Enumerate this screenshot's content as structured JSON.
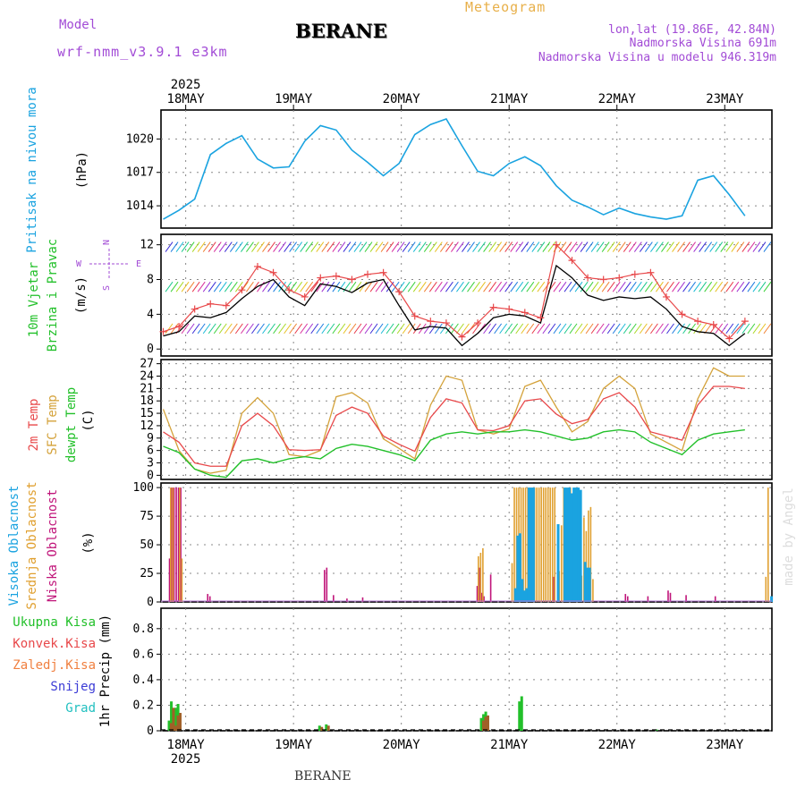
{
  "header": {
    "model_label": "Model",
    "model_name": "wrf-nmm_v3.9.1 e3km",
    "station": "BERANE",
    "product": "Meteogram",
    "lonlat": "lon,lat (19.86E, 42.84N)",
    "altitude": "Nadmorska Visina 691m",
    "model_altitude": "Nadmorska Visina u modelu 946.319m",
    "footer_station": "BERANE",
    "credit": "made by Angel"
  },
  "colors": {
    "pressure": "#1aa3e0",
    "temp": "#e8484a",
    "sfc_temp": "#d4a23a",
    "dewpt": "#22c02a",
    "high_cloud": "#1aa3e0",
    "mid_cloud": "#e0a030",
    "low_cloud": "#c0157a",
    "total_precip": "#22c02a",
    "conv_precip": "#e8484a",
    "frz_precip": "#f08040",
    "snow": "#3b3bd6",
    "hail": "#22c0c0"
  },
  "chart_data": [
    {
      "type": "line",
      "name": "pressure",
      "ylabel_main": "Pritisak na nivou mora",
      "ylabel_unit": "(hPa)",
      "x_start_hours": -10,
      "step_hours": 6,
      "yticks": [
        1014,
        1017,
        1020
      ],
      "ylim": [
        1012,
        1022.6
      ],
      "series": [
        {
          "name": "pressure",
          "values": [
            1012.8,
            1013.6,
            1014.6,
            1018.6,
            1019.6,
            1020.3,
            1018.2,
            1017.4,
            1017.5,
            1019.8,
            1021.2,
            1020.8,
            1019.0,
            1017.9,
            1016.7,
            1017.8,
            1020.4,
            1021.3,
            1021.8,
            1019.4,
            1017.1,
            1016.7,
            1017.8,
            1018.4,
            1017.6,
            1015.8,
            1014.5,
            1013.9,
            1013.2,
            1013.8,
            1013.3,
            1013.0,
            1012.8,
            1013.1,
            1016.3,
            1016.7,
            1015.0,
            1013.1
          ]
        }
      ]
    },
    {
      "type": "line",
      "name": "wind",
      "ylabel_main": "10m Vjetar",
      "ylabel_sub": "Brzina i Pravac",
      "ylabel_unit": "(m/s)",
      "compass": {
        "n": "N",
        "w": "W",
        "e": "E",
        "s": "S"
      },
      "yticks": [
        0,
        4,
        8,
        12
      ],
      "ylim": [
        -0.8,
        13.2
      ],
      "series": [
        {
          "name": "mean speed",
          "values": [
            1.5,
            2.0,
            3.8,
            3.6,
            4.2,
            5.8,
            7.2,
            8.0,
            6.0,
            5.0,
            7.5,
            7.2,
            6.5,
            7.6,
            8.0,
            5.0,
            2.2,
            2.6,
            2.4,
            0.4,
            1.8,
            3.6,
            4.0,
            3.8,
            3.0,
            9.6,
            8.2,
            6.2,
            5.6,
            6.0,
            5.8,
            6.0,
            4.6,
            2.6,
            2.0,
            1.8,
            0.4,
            1.8
          ]
        },
        {
          "name": "gust",
          "values": [
            2.0,
            2.6,
            4.6,
            5.2,
            5.0,
            6.8,
            9.5,
            8.8,
            6.8,
            6.0,
            8.2,
            8.4,
            8.0,
            8.6,
            8.8,
            6.6,
            3.8,
            3.2,
            3.0,
            1.4,
            3.0,
            4.8,
            4.6,
            4.2,
            3.6,
            12.0,
            10.2,
            8.2,
            8.0,
            8.2,
            8.6,
            8.8,
            6.0,
            4.0,
            3.2,
            2.8,
            1.2,
            3.2
          ]
        }
      ]
    },
    {
      "type": "line",
      "name": "temperature",
      "ylabel_main": "2m Temp",
      "ylabel_sub": "SFC Temp",
      "ylabel_sub2": "dewpt Temp",
      "ylabel_unit": "(C)",
      "yticks": [
        0,
        3,
        6,
        9,
        12,
        15,
        18,
        21,
        24,
        27
      ],
      "ylim": [
        -1,
        28
      ],
      "series": [
        {
          "name": "2m Temp",
          "values": [
            10.5,
            8.0,
            3.0,
            2.2,
            2.2,
            12.0,
            15.0,
            12.0,
            6.2,
            6.0,
            6.2,
            14.5,
            16.5,
            15.0,
            9.5,
            7.5,
            5.8,
            14.0,
            18.5,
            17.5,
            11.0,
            10.8,
            12.0,
            18.0,
            18.5,
            14.8,
            12.5,
            13.5,
            18.5,
            20.0,
            16.5,
            10.5,
            9.5,
            8.5,
            17.0,
            21.5,
            21.5,
            21.0
          ]
        },
        {
          "name": "SFC Temp",
          "values": [
            16.0,
            6.0,
            1.5,
            0.5,
            1.2,
            15.0,
            18.8,
            15.0,
            5.0,
            4.5,
            6.0,
            19.0,
            20.0,
            17.5,
            8.8,
            6.5,
            4.0,
            17.0,
            24.0,
            23.0,
            11.0,
            10.0,
            11.2,
            21.5,
            23.0,
            16.5,
            10.5,
            13.0,
            21.0,
            24.0,
            21.0,
            10.0,
            8.0,
            6.0,
            18.5,
            26.0,
            24.0,
            24.0
          ]
        },
        {
          "name": "dewpt Temp",
          "values": [
            7.0,
            5.5,
            1.5,
            0.0,
            -0.5,
            3.5,
            4.0,
            3.0,
            4.0,
            4.5,
            4.0,
            6.5,
            7.5,
            7.0,
            6.0,
            5.0,
            3.5,
            8.5,
            10.0,
            10.5,
            10.0,
            10.5,
            10.5,
            11.0,
            10.5,
            9.5,
            8.5,
            9.0,
            10.5,
            11.0,
            10.5,
            8.0,
            6.5,
            5.0,
            8.5,
            10.0,
            10.5,
            11.0
          ]
        }
      ]
    },
    {
      "type": "bar",
      "name": "cloud",
      "ylabel_main": "Visoka Oblacnost",
      "ylabel_sub": "Srednja Oblacnost",
      "ylabel_sub2": "Niska Oblacnost",
      "ylabel_unit": "(%)",
      "yticks": [
        0,
        25,
        50,
        75,
        100
      ],
      "ylim": [
        0,
        104
      ],
      "series": [
        {
          "name": "Niska Oblacnost",
          "points": [
            [
              -8,
              38
            ],
            [
              -7,
              100
            ],
            [
              -6,
              100
            ],
            [
              -5,
              100
            ],
            [
              -4,
              100
            ],
            [
              -3,
              100
            ],
            [
              9,
              7
            ],
            [
              10,
              5
            ],
            [
              61,
              28
            ],
            [
              62,
              30
            ],
            [
              65,
              6
            ],
            [
              71,
              3
            ],
            [
              78,
              4
            ],
            [
              129,
              14
            ],
            [
              130,
              30
            ],
            [
              131,
              8
            ],
            [
              132,
              5
            ],
            [
              135,
              24
            ],
            [
              163,
              22
            ],
            [
              165,
              12
            ],
            [
              173,
              38
            ],
            [
              174,
              22
            ],
            [
              175,
              9
            ],
            [
              195,
              7
            ],
            [
              196,
              5
            ],
            [
              205,
              5
            ],
            [
              214,
              10
            ],
            [
              215,
              8
            ],
            [
              222,
              6
            ],
            [
              235,
              5
            ]
          ]
        },
        {
          "name": "Srednja Oblacnost",
          "points": [
            [
              -7,
              100
            ],
            [
              -6,
              100
            ],
            [
              -3,
              100
            ],
            [
              -2,
              38
            ],
            [
              130,
              40
            ],
            [
              131,
              43
            ],
            [
              132,
              47
            ],
            [
              145,
              34
            ],
            [
              146,
              100
            ],
            [
              147,
              100
            ],
            [
              148,
              100
            ],
            [
              149,
              100
            ],
            [
              150,
              100
            ],
            [
              151,
              100
            ],
            [
              152,
              100
            ],
            [
              153,
              100
            ],
            [
              154,
              100
            ],
            [
              155,
              100
            ],
            [
              156,
              100
            ],
            [
              157,
              100
            ],
            [
              158,
              100
            ],
            [
              159,
              100
            ],
            [
              160,
              100
            ],
            [
              161,
              100
            ],
            [
              162,
              100
            ],
            [
              163,
              100
            ],
            [
              164,
              100
            ],
            [
              166,
              27
            ],
            [
              167,
              67
            ],
            [
              168,
              100
            ],
            [
              169,
              100
            ],
            [
              170,
              100
            ],
            [
              171,
              100
            ],
            [
              172,
              70
            ],
            [
              173,
              100
            ],
            [
              174,
              100
            ],
            [
              175,
              35
            ],
            [
              176,
              23
            ],
            [
              177,
              74
            ],
            [
              178,
              62
            ],
            [
              179,
              80
            ],
            [
              180,
              83
            ],
            [
              181,
              20
            ],
            [
              258,
              22
            ],
            [
              259,
              100
            ]
          ]
        },
        {
          "name": "Visoka Oblacnost",
          "points": [
            [
              146,
              12
            ],
            [
              147,
              58
            ],
            [
              148,
              60
            ],
            [
              149,
              20
            ],
            [
              150,
              10
            ],
            [
              151,
              12
            ],
            [
              152,
              100
            ],
            [
              153,
              100
            ],
            [
              154,
              100
            ],
            [
              165,
              68
            ],
            [
              168,
              100
            ],
            [
              169,
              100
            ],
            [
              170,
              100
            ],
            [
              171,
              95
            ],
            [
              172,
              100
            ],
            [
              173,
              100
            ],
            [
              174,
              100
            ],
            [
              175,
              98
            ],
            [
              177,
              35
            ],
            [
              178,
              30
            ],
            [
              179,
              30
            ],
            [
              260,
              5
            ]
          ]
        }
      ]
    },
    {
      "type": "bar",
      "name": "precipitation",
      "legend": [
        "Ukupna Kisa",
        "Konvek.Kisa",
        "Zaledj.Kisa",
        "Snijeg",
        "Grad"
      ],
      "ylabel_main": "1hr Precip (mm)",
      "yticks": [
        0,
        0.2,
        0.4,
        0.6,
        0.8
      ],
      "ylim": [
        0,
        0.96
      ],
      "series": [
        {
          "name": "Ukupna Kisa",
          "points": [
            [
              -8,
              0.08
            ],
            [
              -7,
              0.23
            ],
            [
              -6,
              0.05
            ],
            [
              -5,
              0.18
            ],
            [
              -4,
              0.21
            ],
            [
              59,
              0.04
            ],
            [
              60,
              0.02
            ],
            [
              62,
              0.05
            ],
            [
              131,
              0.1
            ],
            [
              132,
              0.13
            ],
            [
              133,
              0.15
            ],
            [
              148,
              0.23
            ],
            [
              149,
              0.27
            ],
            [
              209,
              0.01
            ]
          ]
        },
        {
          "name": "Konvek.Kisa",
          "points": [
            [
              -8,
              0.06
            ],
            [
              -7,
              0.18
            ],
            [
              -6,
              0.04
            ],
            [
              -5,
              0.12
            ],
            [
              -4,
              0.14
            ],
            [
              59,
              0.03
            ],
            [
              62,
              0.04
            ],
            [
              131,
              0.08
            ],
            [
              132,
              0.11
            ],
            [
              133,
              0.12
            ]
          ]
        }
      ]
    }
  ],
  "xaxis": {
    "year": "2025",
    "day_labels": [
      "18MAY",
      "19MAY",
      "20MAY",
      "21MAY",
      "22MAY",
      "23MAY"
    ],
    "hours_range": [
      -11,
      261
    ]
  }
}
